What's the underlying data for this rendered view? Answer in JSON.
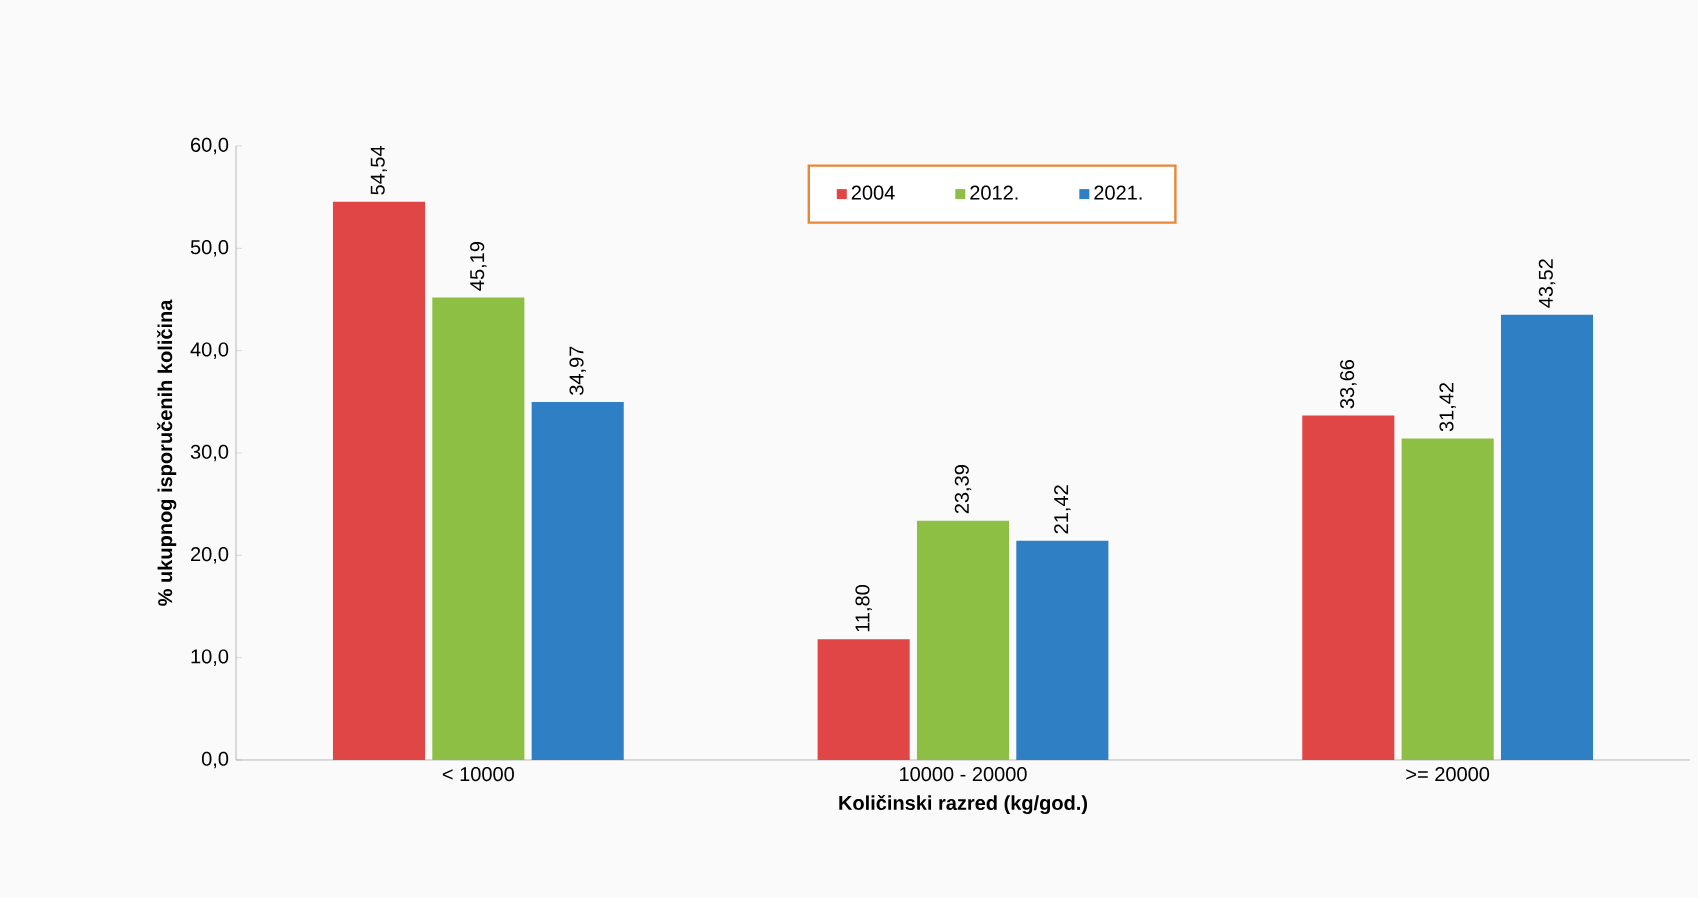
{
  "chart_data": {
    "type": "bar",
    "xlabel": "Količinski razred (kg/god.)",
    "ylabel": "% ukupnog isporučenih količina",
    "categories": [
      "< 10000",
      "10000 - 20000",
      ">= 20000"
    ],
    "series": [
      {
        "name": "2004",
        "color": "#e04646",
        "values": [
          54.54,
          11.8,
          33.66
        ],
        "value_labels": [
          "54,54",
          "11,80",
          "33,66"
        ]
      },
      {
        "name": "2012.",
        "color": "#8cbf44",
        "values": [
          45.19,
          23.39,
          31.42
        ],
        "value_labels": [
          "45,19",
          "23,39",
          "31,42"
        ]
      },
      {
        "name": "2021.",
        "color": "#2f7fc4",
        "values": [
          34.97,
          21.42,
          43.52
        ],
        "value_labels": [
          "34,97",
          "21,42",
          "43,52"
        ]
      }
    ],
    "ylim": [
      0,
      60
    ],
    "yticks": [
      {
        "value": 0,
        "label": "0,0"
      },
      {
        "value": 10,
        "label": "10,0"
      },
      {
        "value": 20,
        "label": "20,0"
      },
      {
        "value": 30,
        "label": "30,0"
      },
      {
        "value": 40,
        "label": "40,0"
      },
      {
        "value": 50,
        "label": "50,0"
      },
      {
        "value": 60,
        "label": "60,0"
      }
    ],
    "legend": "top"
  }
}
